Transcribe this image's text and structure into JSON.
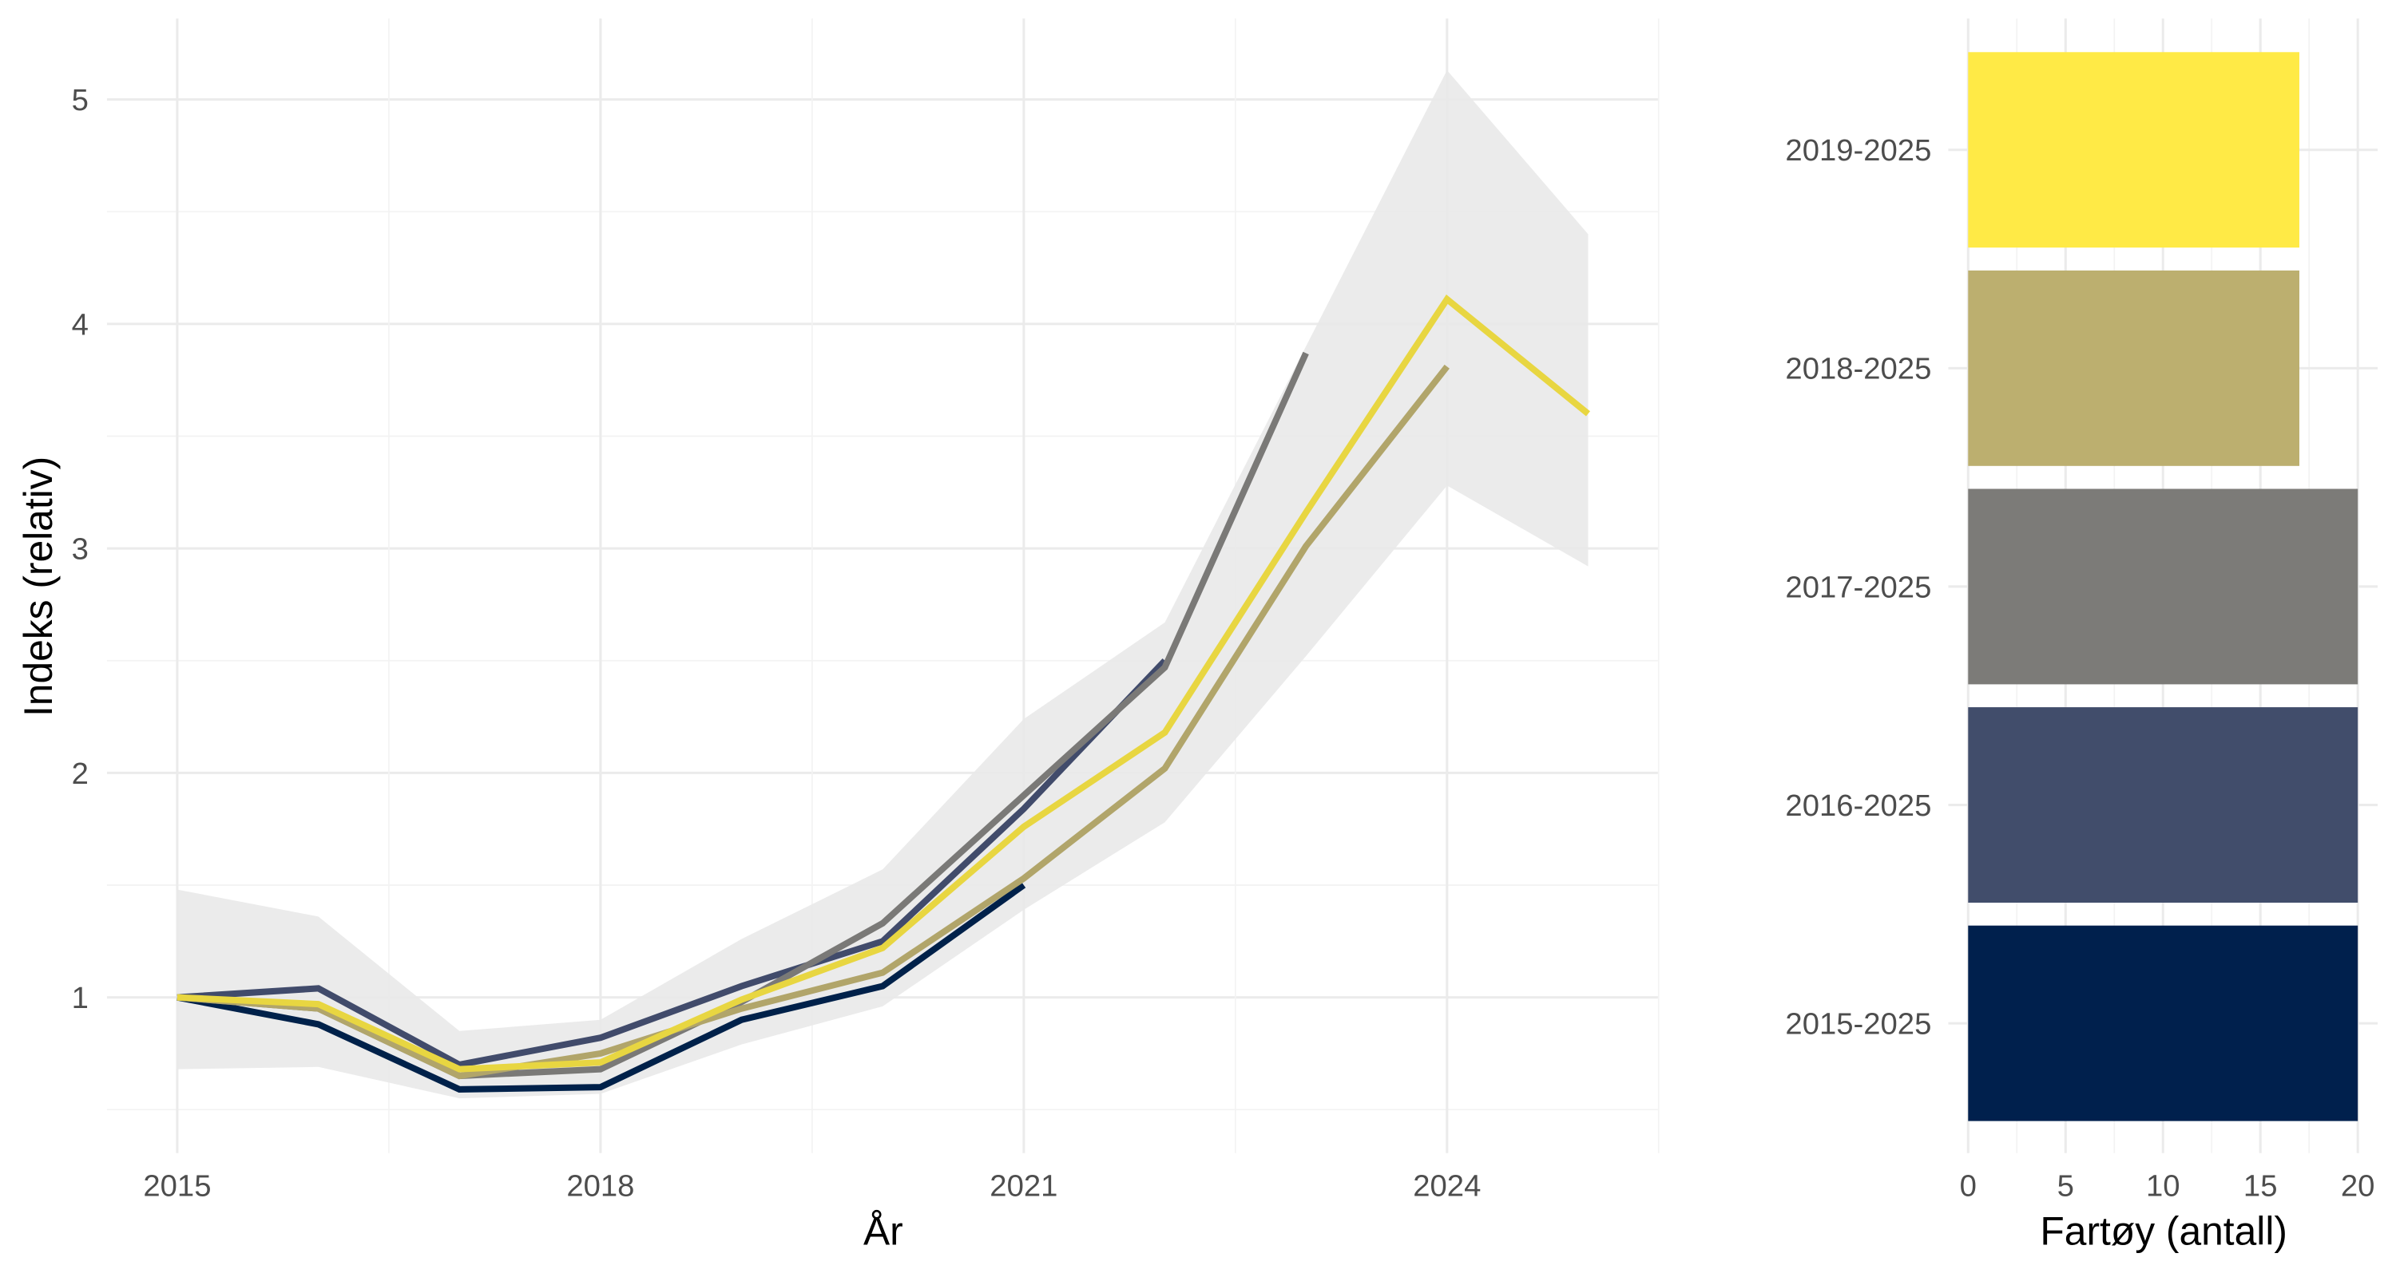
{
  "chart_data": [
    {
      "type": "line",
      "xlabel": "År",
      "ylabel": "Indeks (relativ)",
      "xlim": [
        2014.5,
        2025.5
      ],
      "ylim": [
        0.31,
        5.36
      ],
      "xticks": [
        2015,
        2018,
        2021,
        2024
      ],
      "yticks": [
        1,
        2,
        3,
        4,
        5
      ],
      "grid": true,
      "x": [
        2015,
        2016,
        2017,
        2018,
        2019,
        2020,
        2021,
        2022,
        2023,
        2024,
        2025
      ],
      "ribbon": {
        "color": "#e9e9e9",
        "upper": [
          1.48,
          1.36,
          0.85,
          0.9,
          1.26,
          1.57,
          2.24,
          2.67,
          3.9,
          5.13,
          4.4
        ],
        "lower": [
          0.68,
          0.69,
          0.55,
          0.57,
          0.79,
          0.96,
          1.39,
          1.78,
          2.52,
          3.28,
          2.92
        ]
      },
      "series": [
        {
          "group": "2015-2025",
          "color": "#00214a",
          "values": [
            1.0,
            0.88,
            0.59,
            0.6,
            0.9,
            1.05,
            1.5,
            null,
            null,
            null,
            null
          ]
        },
        {
          "group": "2016-2025",
          "color": "#414b6b",
          "values": [
            1.0,
            1.04,
            0.7,
            0.82,
            1.05,
            1.25,
            1.84,
            2.5,
            null,
            null,
            null
          ]
        },
        {
          "group": "2017-2025",
          "color": "#7a7977",
          "values": [
            1.0,
            0.95,
            0.65,
            0.68,
            0.98,
            1.33,
            1.9,
            2.47,
            3.87,
            null,
            null
          ]
        },
        {
          "group": "2018-2025",
          "color": "#b1a56a",
          "values": [
            1.0,
            0.95,
            0.65,
            0.75,
            0.95,
            1.11,
            1.53,
            2.02,
            3.01,
            3.81,
            null
          ]
        },
        {
          "group": "2019-2025",
          "color": "#e8d641",
          "values": [
            1.0,
            0.97,
            0.68,
            0.71,
            0.99,
            1.22,
            1.76,
            2.18,
            3.16,
            4.11,
            3.6
          ]
        }
      ]
    },
    {
      "type": "bar",
      "orientation": "horizontal",
      "xlabel": "Fartøy (antall)",
      "xlim": [
        0,
        20
      ],
      "xticks": [
        0,
        5,
        10,
        15,
        20
      ],
      "grid": true,
      "categories": [
        "2019-2025",
        "2018-2025",
        "2017-2025",
        "2016-2025",
        "2015-2025"
      ],
      "values": [
        17,
        17,
        20,
        20,
        20
      ],
      "colors": [
        "#ffea46",
        "#bcaf6f",
        "#7c7b78",
        "#414d6b",
        "#00204d"
      ]
    }
  ]
}
